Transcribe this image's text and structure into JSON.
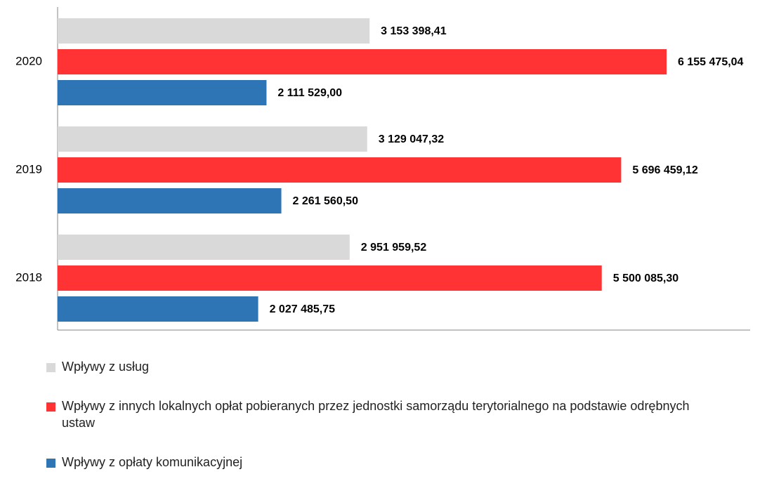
{
  "chart_data": {
    "type": "hbar",
    "categories": [
      "2020",
      "2019",
      "2018"
    ],
    "series": [
      {
        "name": "Wpływy z usług",
        "color": "#d9d9d9",
        "values": [
          3153398.41,
          3129047.32,
          2951959.52
        ],
        "value_labels": [
          "3 153 398,41",
          "3 129 047,32",
          "2 951 959,52"
        ]
      },
      {
        "name": "Wpływy z innych lokalnych opłat pobieranych przez jednostki samorządu terytorialnego na podstawie odrębnych ustaw",
        "color": "#ff3333",
        "values": [
          6155475.04,
          5696459.12,
          5500085.3
        ],
        "value_labels": [
          "6 155 475,04",
          "5 696 459,12",
          "5 500 085,30"
        ]
      },
      {
        "name": "Wpływy z opłaty komunikacyjnej",
        "color": "#2e75b6",
        "values": [
          2111529.0,
          2261560.5,
          2027485.75
        ],
        "value_labels": [
          "2 111 529,00",
          "2 261 560,50",
          "2 027 485,75"
        ]
      }
    ],
    "xlim": [
      0,
      7000000
    ],
    "legend": "bottom"
  }
}
